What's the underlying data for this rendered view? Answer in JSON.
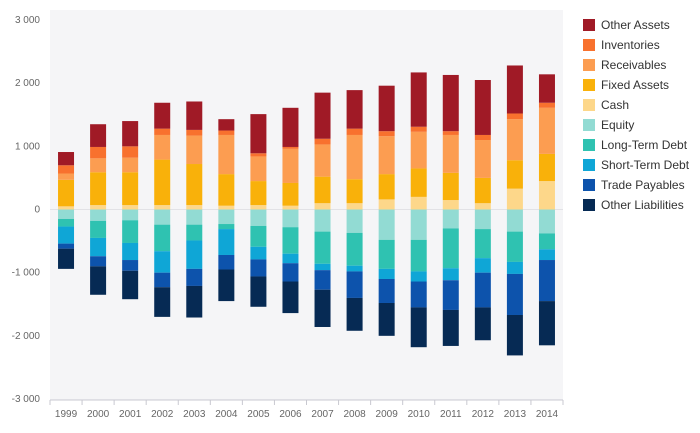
{
  "chart_data": {
    "type": "bar",
    "stacked": true,
    "categories": [
      "1999",
      "2000",
      "2001",
      "2002",
      "2003",
      "2004",
      "2005",
      "2006",
      "2007",
      "2008",
      "2009",
      "2010",
      "2011",
      "2012",
      "2013",
      "2014"
    ],
    "ylim": [
      -3000,
      3000
    ],
    "yticks": [
      -3000,
      -2000,
      -1000,
      0,
      1000,
      2000,
      3000
    ],
    "ytick_labels": [
      "-3 000",
      "-2 000",
      "-1 000",
      "0",
      "1 000",
      "2 000",
      "3 000"
    ],
    "grid": false,
    "legend_position": "right",
    "assets": [
      {
        "name": "Cash",
        "color": "#fdd78a",
        "values": [
          50,
          70,
          70,
          70,
          70,
          60,
          70,
          60,
          100,
          100,
          160,
          200,
          150,
          100,
          330,
          450
        ]
      },
      {
        "name": "Fixed Assets",
        "color": "#f9b10a",
        "values": [
          420,
          520,
          520,
          720,
          650,
          500,
          380,
          360,
          420,
          380,
          400,
          450,
          430,
          400,
          450,
          430
        ]
      },
      {
        "name": "Receivables",
        "color": "#fc9d51",
        "values": [
          100,
          220,
          230,
          390,
          450,
          620,
          390,
          540,
          510,
          700,
          600,
          580,
          600,
          600,
          650,
          730
        ]
      },
      {
        "name": "Inventories",
        "color": "#f8712e",
        "values": [
          130,
          180,
          180,
          100,
          90,
          70,
          50,
          30,
          90,
          100,
          80,
          80,
          60,
          80,
          90,
          80
        ]
      },
      {
        "name": "Other Assets",
        "color": "#a01a26",
        "values": [
          210,
          360,
          400,
          410,
          450,
          180,
          620,
          620,
          730,
          610,
          720,
          860,
          890,
          870,
          760,
          450
        ]
      }
    ],
    "liabilities": [
      {
        "name": "Equity",
        "color": "#92dbd3",
        "values": [
          150,
          180,
          170,
          240,
          240,
          230,
          260,
          280,
          350,
          370,
          480,
          480,
          300,
          310,
          350,
          380
        ]
      },
      {
        "name": "Long-Term Debt",
        "color": "#2fc2b1",
        "values": [
          120,
          270,
          360,
          420,
          250,
          80,
          330,
          420,
          510,
          520,
          460,
          500,
          630,
          460,
          480,
          250
        ]
      },
      {
        "name": "Short-Term Debt",
        "color": "#0fa6d6",
        "values": [
          270,
          290,
          270,
          340,
          450,
          410,
          200,
          150,
          100,
          90,
          160,
          160,
          190,
          230,
          190,
          170
        ]
      },
      {
        "name": "Trade Payables",
        "color": "#0d53ac",
        "values": [
          80,
          160,
          170,
          230,
          270,
          230,
          270,
          290,
          310,
          420,
          380,
          410,
          470,
          550,
          650,
          650
        ]
      },
      {
        "name": "Other Liabilities",
        "color": "#062a54",
        "values": [
          320,
          450,
          450,
          470,
          500,
          500,
          480,
          500,
          590,
          520,
          520,
          630,
          570,
          520,
          640,
          700
        ]
      }
    ],
    "legend": [
      "Other Assets",
      "Inventories",
      "Receivables",
      "Fixed Assets",
      "Cash",
      "Equity",
      "Long-Term Debt",
      "Short-Term Debt",
      "Trade Payables",
      "Other Liabilities"
    ]
  }
}
